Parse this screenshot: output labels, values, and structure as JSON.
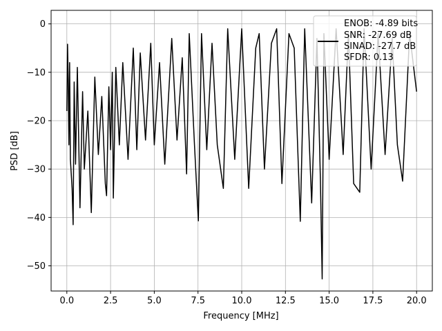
{
  "chart_data": {
    "type": "line",
    "title": "",
    "xlabel": "Frequency [MHz]",
    "ylabel": "PSD [dB]",
    "xlim": [
      -0.9,
      20.9
    ],
    "ylim": [
      -55.2,
      2.8
    ],
    "xticks": [
      0.0,
      2.5,
      5.0,
      7.5,
      10.0,
      12.5,
      15.0,
      17.5,
      20.0
    ],
    "xtick_labels": [
      "0.0",
      "2.5",
      "5.0",
      "7.5",
      "10.0",
      "12.5",
      "15.0",
      "17.5",
      "20.0"
    ],
    "yticks": [
      0,
      -10,
      -20,
      -30,
      -40,
      -50
    ],
    "ytick_labels": [
      "0",
      "−10",
      "−20",
      "−30",
      "−40",
      "−50"
    ],
    "grid": true,
    "legend": {
      "placement": "top-right",
      "entries": [
        "ENOB: -4.89 bits",
        "SNR: -27.69 dB",
        "SINAD: -27.7 dB",
        "SFDR: 0.13"
      ]
    },
    "series": [
      {
        "color": "#000000",
        "x": [
          0.0,
          0.04,
          0.08,
          0.12,
          0.16,
          0.2,
          0.3,
          0.36,
          0.42,
          0.5,
          0.6,
          0.75,
          0.9,
          1.0,
          1.2,
          1.4,
          1.6,
          1.8,
          2.0,
          2.2,
          2.27,
          2.4,
          2.5,
          2.6,
          2.66,
          2.8,
          3.0,
          3.2,
          3.5,
          3.8,
          4.0,
          4.2,
          4.5,
          4.8,
          5.0,
          5.3,
          5.6,
          6.0,
          6.3,
          6.6,
          6.85,
          7.0,
          7.3,
          7.52,
          7.7,
          8.0,
          8.3,
          8.6,
          8.95,
          9.2,
          9.6,
          10.0,
          10.4,
          10.8,
          11.0,
          11.3,
          11.7,
          12.0,
          12.3,
          12.7,
          13.0,
          13.35,
          13.6,
          14.0,
          14.3,
          14.5,
          14.6,
          14.7,
          15.0,
          15.4,
          15.8,
          16.1,
          16.4,
          16.75,
          17.0,
          17.4,
          17.8,
          18.2,
          18.6,
          18.9,
          19.2,
          19.6,
          20.0
        ],
        "y": [
          -18,
          -4.2,
          -12,
          -25,
          -8,
          -28,
          -34,
          -41.5,
          -12,
          -29,
          -9,
          -38,
          -14,
          -30,
          -18,
          -39,
          -11,
          -27,
          -15,
          -33,
          -35.5,
          -13,
          -26,
          -10,
          -36,
          -9,
          -25,
          -8,
          -28,
          -5,
          -26,
          -6,
          -24,
          -4,
          -25,
          -8,
          -29,
          -3,
          -24,
          -7,
          -31,
          -2,
          -25,
          -40.7,
          -2,
          -26,
          -4,
          -25,
          -34,
          -1,
          -28,
          -1,
          -34,
          -5,
          -2,
          -30,
          -4,
          -1,
          -33,
          -2,
          -5,
          -40.8,
          -1,
          -37,
          -3,
          -32,
          -52.7,
          -2,
          -28,
          -1,
          -27,
          -2,
          -33,
          -34.8,
          -1,
          -30,
          -2,
          -27,
          -3,
          -25,
          -32.5,
          -2,
          -14
        ]
      }
    ]
  }
}
